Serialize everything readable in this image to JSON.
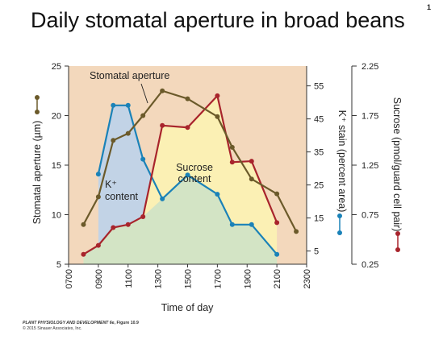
{
  "slide": {
    "number": "1"
  },
  "credit": {
    "book": "PLANT PHYSIOLOGY AND DEVELOPMENT 6e",
    "figure": ", Figure 10.9",
    "copyright": "© 2015 Sinauer Associates, Inc."
  },
  "colors": {
    "background": "#f3d8bc",
    "stomatal": "#6b5a2a",
    "potassium": "#1a82b8",
    "sucrose": "#a8242c",
    "k_fill": "#c2d3e6",
    "sucrose_fill": "#fbf0b4",
    "base_fill": "#d3e4c5"
  },
  "chart_data": {
    "type": "line",
    "title": "Daily stomatal aperture in broad beans",
    "xlabel": "Time of day",
    "categories": [
      "0700",
      "0900",
      "1100",
      "1300",
      "1500",
      "1700",
      "1900",
      "2100",
      "2300"
    ],
    "xlim": [
      700,
      2300
    ],
    "axes": {
      "left": {
        "label": "Stomatal aperture (µm)",
        "ticks": [
          5,
          10,
          15,
          20,
          25
        ],
        "lim": [
          5,
          25
        ]
      },
      "k": {
        "label": "K⁺ stain (percent area)",
        "ticks": [
          5,
          15,
          25,
          35,
          45,
          55
        ],
        "lim": [
          1,
          61
        ]
      },
      "right": {
        "label": "Sucrose (pmol/guard cell pair)",
        "ticks": [
          "0.25",
          "0.75",
          "1.25",
          "1.75",
          "2.25"
        ],
        "lim": [
          0.25,
          2.25
        ]
      }
    },
    "series": [
      {
        "name": "Stomatal aperture",
        "key": "stomatal",
        "axis": "left",
        "x": [
          800,
          900,
          1000,
          1100,
          1200,
          1330,
          1500,
          1700,
          1800,
          1930,
          2100,
          2230
        ],
        "y": [
          9.0,
          11.8,
          17.5,
          18.2,
          20.0,
          22.5,
          21.7,
          19.9,
          16.8,
          13.6,
          12.1,
          8.3
        ]
      },
      {
        "name": "K⁺ content",
        "key": "potassium",
        "axis": "k",
        "x": [
          800,
          900,
          1000,
          1100,
          1200,
          1330,
          1500,
          1700,
          1800,
          1930,
          2100
        ],
        "y": [
          null,
          28.3,
          49.1,
          49.1,
          32.8,
          20.8,
          28.0,
          22.2,
          13.0,
          13.0,
          4.0
        ]
      },
      {
        "name": "Sucrose content",
        "key": "sucrose",
        "axis": "right",
        "x": [
          800,
          900,
          1000,
          1100,
          1200,
          1330,
          1500,
          1700,
          1800,
          1930,
          2100
        ],
        "y": [
          0.35,
          0.44,
          0.62,
          0.65,
          0.73,
          1.65,
          1.63,
          1.95,
          1.28,
          1.29,
          0.67
        ]
      }
    ],
    "annotations": [
      "Stomatal aperture",
      "K⁺",
      "content",
      "Sucrose",
      "content"
    ]
  }
}
